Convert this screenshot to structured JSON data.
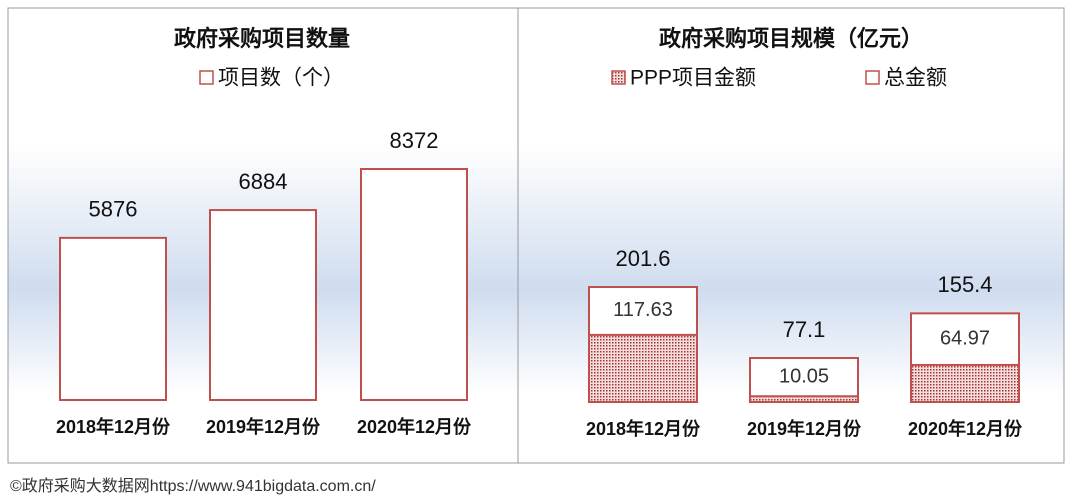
{
  "chart_data": [
    {
      "type": "bar",
      "title": "政府采购项目数量",
      "categories": [
        "2018年12月份",
        "2019年12月份",
        "2020年12月份"
      ],
      "series": [
        {
          "name": "项目数（个）",
          "color": "#c0504d",
          "values": [
            5876,
            6884,
            8372
          ]
        }
      ]
    },
    {
      "type": "overlap-bar",
      "title": "政府采购项目规模（亿元）",
      "categories": [
        "2018年12月份",
        "2019年12月份",
        "2020年12月份"
      ],
      "series": [
        {
          "name": "PPP项目金额",
          "color": "#c0504d",
          "values": [
            117.63,
            10.05,
            64.97
          ]
        },
        {
          "name": "总金额",
          "color": "#c0504d",
          "values": [
            201.6,
            77.1,
            155.4
          ]
        }
      ]
    }
  ],
  "footer": "©政府采购大数据网https://www.941bigdata.com.cn/"
}
